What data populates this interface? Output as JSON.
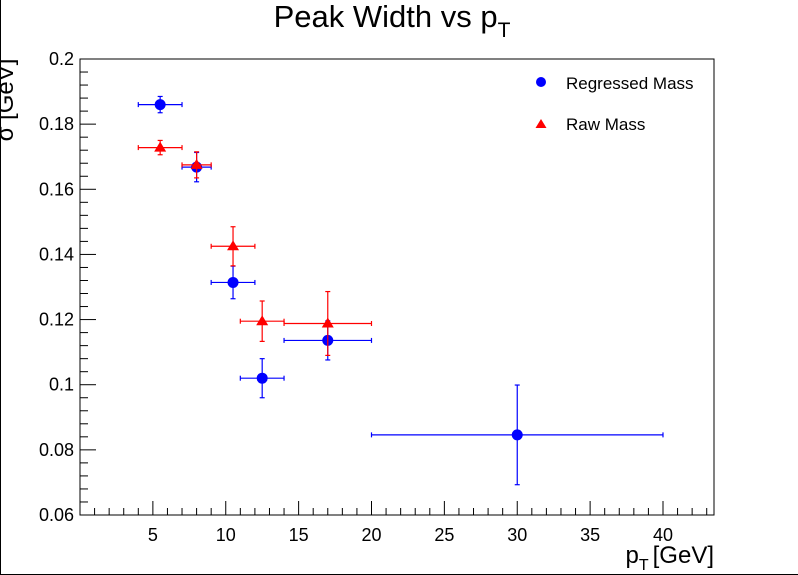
{
  "chart_data": {
    "type": "scatter",
    "title": "Peak Width vs p",
    "title_subscript": "T",
    "xlabel": "p",
    "xlabel_subscript": "T",
    "xlabel_unit": "[GeV]",
    "ylabel": "σ [GeV]",
    "xlim": [
      0,
      43.5
    ],
    "ylim": [
      0.06,
      0.2
    ],
    "x_ticks": [
      5,
      10,
      15,
      20,
      25,
      30,
      35,
      40
    ],
    "x_tick_labels": [
      "5",
      "10",
      "15",
      "20",
      "25",
      "30",
      "35",
      "40"
    ],
    "y_ticks": [
      0.06,
      0.08,
      0.1,
      0.12,
      0.14,
      0.16,
      0.18,
      0.2
    ],
    "y_tick_labels": [
      "0.06",
      "0.08",
      "0.1",
      "0.12",
      "0.14",
      "0.16",
      "0.18",
      "0.2"
    ],
    "grid": false,
    "legend_position": "top-right",
    "series": [
      {
        "name": "Regressed Mass",
        "color": "#0000ff",
        "marker": "circle",
        "points": [
          {
            "x": 5.5,
            "y": 0.186,
            "x_lo": 4,
            "x_hi": 7,
            "y_err": 0.0025
          },
          {
            "x": 8,
            "y": 0.1668,
            "x_lo": 7,
            "x_hi": 9,
            "y_err": 0.0045
          },
          {
            "x": 10.5,
            "y": 0.1314,
            "x_lo": 9,
            "x_hi": 12,
            "y_err": 0.005
          },
          {
            "x": 12.5,
            "y": 0.102,
            "x_lo": 11,
            "x_hi": 14,
            "y_err": 0.006
          },
          {
            "x": 17,
            "y": 0.1136,
            "x_lo": 14,
            "x_hi": 20,
            "y_err": 0.006
          },
          {
            "x": 30,
            "y": 0.0846,
            "x_lo": 20,
            "x_hi": 40,
            "y_err": 0.0153
          }
        ]
      },
      {
        "name": "Raw Mass",
        "color": "#ff0000",
        "marker": "triangle",
        "points": [
          {
            "x": 5.5,
            "y": 0.1728,
            "x_lo": 4,
            "x_hi": 7,
            "y_err": 0.0022
          },
          {
            "x": 8,
            "y": 0.1675,
            "x_lo": 7,
            "x_hi": 9,
            "y_err": 0.004
          },
          {
            "x": 10.5,
            "y": 0.1425,
            "x_lo": 9,
            "x_hi": 12,
            "y_err": 0.006
          },
          {
            "x": 12.5,
            "y": 0.1195,
            "x_lo": 11,
            "x_hi": 14,
            "y_err": 0.0062
          },
          {
            "x": 17,
            "y": 0.1188,
            "x_lo": 14,
            "x_hi": 20,
            "y_err": 0.0098
          }
        ]
      }
    ]
  }
}
